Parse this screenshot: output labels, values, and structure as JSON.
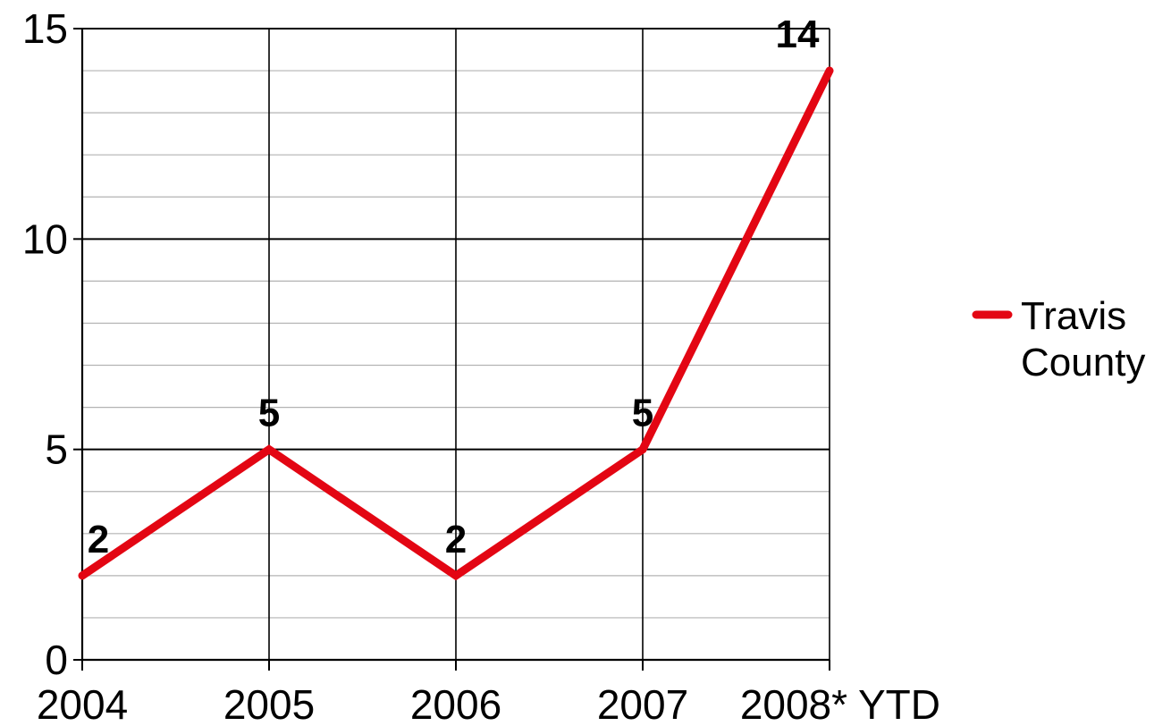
{
  "chart_data": {
    "type": "line",
    "categories": [
      "2004",
      "2005",
      "2006",
      "2007",
      "2008* YTD"
    ],
    "series": [
      {
        "name": "Travis County",
        "values": [
          2,
          5,
          2,
          5,
          14
        ],
        "color": "#e30613"
      }
    ],
    "ylim": [
      0,
      15
    ],
    "y_major_ticks": [
      0,
      5,
      10,
      15
    ],
    "y_minor_step": 1,
    "grid": true,
    "data_labels": true,
    "legend": {
      "position": "right",
      "entries": [
        "Travis County"
      ]
    }
  }
}
